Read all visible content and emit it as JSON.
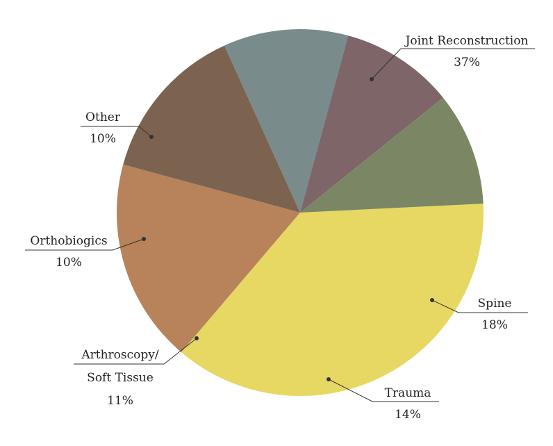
{
  "chart_data": {
    "type": "pie",
    "title": "",
    "legend": "none",
    "slices": [
      {
        "name": "Joint Reconstruction",
        "label_lines": [
          "Joint Reconstruction"
        ],
        "value_label": "37%",
        "value": 37,
        "color": "#E6D862"
      },
      {
        "name": "Spine",
        "label_lines": [
          "Spine"
        ],
        "value_label": "18%",
        "value": 18,
        "color": "#B8825A"
      },
      {
        "name": "Trauma",
        "label_lines": [
          "Trauma"
        ],
        "value_label": "14%",
        "value": 14,
        "color": "#7B6350"
      },
      {
        "name": "Arthroscopy/ Soft Tissue",
        "label_lines": [
          "Arthroscopy/",
          "Soft Tissue"
        ],
        "value_label": "11%",
        "value": 11,
        "color": "#7A8B8C"
      },
      {
        "name": "Orthobiogics",
        "label_lines": [
          "Orthobiogics"
        ],
        "value_label": "10%",
        "value": 10,
        "color": "#7D6568"
      },
      {
        "name": "Other",
        "label_lines": [
          "Other"
        ],
        "value_label": "10%",
        "value": 10,
        "color": "#7B8764"
      }
    ]
  }
}
